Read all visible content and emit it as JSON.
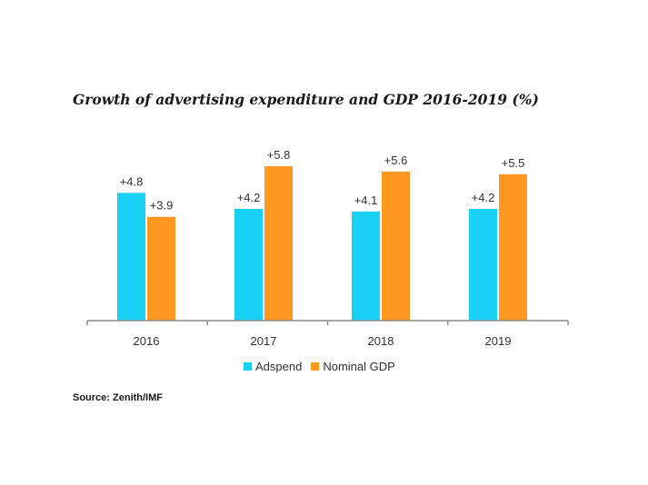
{
  "chart_data": {
    "type": "bar",
    "title": "Growth of advertising expenditure and GDP 2016-2019 (%)",
    "categories": [
      "2016",
      "2017",
      "2018",
      "2019"
    ],
    "series": [
      {
        "name": "Adspend",
        "values": [
          4.8,
          4.2,
          4.1,
          4.2
        ],
        "labels": [
          "+4.8",
          "+4.2",
          "+4.1",
          "+4.2"
        ],
        "color": "#19D0F5"
      },
      {
        "name": "Nominal GDP",
        "values": [
          3.9,
          5.8,
          5.6,
          5.5
        ],
        "labels": [
          "+3.9",
          "+5.8",
          "+5.6",
          "+5.5"
        ],
        "color": "#FF9820"
      }
    ],
    "ylim": [
      0,
      6
    ],
    "xlabel": "",
    "ylabel": "",
    "grid": false,
    "legend_position": "bottom"
  },
  "source": "Source: Zenith/IMF"
}
